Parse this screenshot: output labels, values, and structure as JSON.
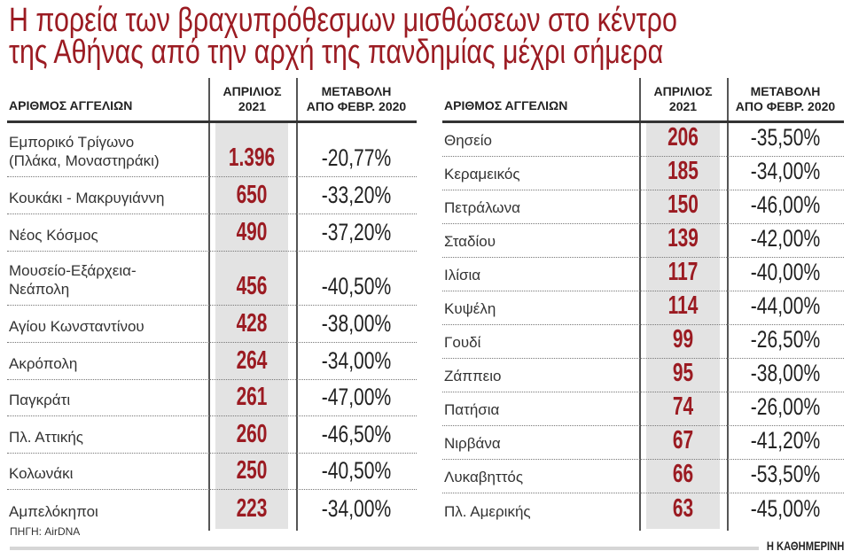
{
  "title": {
    "line1": "Η πορεία των βραχυπρόθεσμων μισθώσεων στο κέντρο",
    "line2": "της Αθήνας από την αρχή της πανδημίας μέχρι σήμερα"
  },
  "headers": {
    "name": "ΑΡΙΘΜΟΣ ΑΓΓΕΛΙΩΝ",
    "value_line1": "ΑΠΡΙΛΙΟΣ",
    "value_line2": "2021",
    "change_line1": "ΜΕΤΑΒΟΛΗ",
    "change_line2": "ΑΠΟ ΦΕΒΡ. 2020"
  },
  "chart_data": {
    "type": "table",
    "title": "Η πορεία των βραχυπρόθεσμων μισθώσεων στο κέντρο της Αθήνας από την αρχή της πανδημίας μέχρι σήμερα",
    "columns": [
      "ΑΡΙΘΜΟΣ ΑΓΓΕΛΙΩΝ",
      "ΑΠΡΙΛΙΟΣ 2021",
      "ΜΕΤΑΒΟΛΗ ΑΠΟ ΦΕΒΡ. 2020"
    ],
    "left": [
      {
        "name": [
          "Εμπορικό Τρίγωνο",
          "(Πλάκα, Μοναστηράκι)"
        ],
        "value": "1.396",
        "change": "-20,77%"
      },
      {
        "name": [
          "Κουκάκι - Μακρυγιάννη"
        ],
        "value": "650",
        "change": "-33,20%"
      },
      {
        "name": [
          "Νέος Κόσμος"
        ],
        "value": "490",
        "change": "-37,20%"
      },
      {
        "name": [
          "Μουσείο-Εξάρχεια-",
          "Νεάπολη"
        ],
        "value": "456",
        "change": "-40,50%"
      },
      {
        "name": [
          "Αγίου Κωνσταντίνου"
        ],
        "value": "428",
        "change": "-38,00%"
      },
      {
        "name": [
          "Ακρόπολη"
        ],
        "value": "264",
        "change": "-34,00%"
      },
      {
        "name": [
          "Παγκράτι"
        ],
        "value": "261",
        "change": "-47,00%"
      },
      {
        "name": [
          "Πλ. Αττικής"
        ],
        "value": "260",
        "change": "-46,50%"
      },
      {
        "name": [
          "Κολωνάκι"
        ],
        "value": "250",
        "change": "-40,50%"
      },
      {
        "name": [
          "Αμπελόκηποι"
        ],
        "value": "223",
        "change": "-34,00%"
      }
    ],
    "right": [
      {
        "name": [
          "Θησείο"
        ],
        "value": "206",
        "change": "-35,50%"
      },
      {
        "name": [
          "Κεραμεικός"
        ],
        "value": "185",
        "change": "-34,00%"
      },
      {
        "name": [
          "Πετράλωνα"
        ],
        "value": "150",
        "change": "-46,00%"
      },
      {
        "name": [
          "Σταδίου"
        ],
        "value": "139",
        "change": "-42,00%"
      },
      {
        "name": [
          "Ιλίσια"
        ],
        "value": "117",
        "change": "-40,00%"
      },
      {
        "name": [
          "Κυψέλη"
        ],
        "value": "114",
        "change": "-44,00%"
      },
      {
        "name": [
          "Γουδί"
        ],
        "value": "99",
        "change": "-26,50%"
      },
      {
        "name": [
          "Ζάππειο"
        ],
        "value": "95",
        "change": "-38,00%"
      },
      {
        "name": [
          "Πατήσια"
        ],
        "value": "74",
        "change": "-26,00%"
      },
      {
        "name": [
          "Νιρβάνα"
        ],
        "value": "67",
        "change": "-41,20%"
      },
      {
        "name": [
          "Λυκαβηττός"
        ],
        "value": "66",
        "change": "-53,50%"
      },
      {
        "name": [
          "Πλ. Αμερικής"
        ],
        "value": "63",
        "change": "-45,00%"
      }
    ]
  },
  "colors": {
    "accent": "#9b1b22",
    "value_column_bg": "#e3e3e3"
  },
  "footer": {
    "source": "ΠΗΓΗ: AirDNA",
    "brand": "Η ΚΑΘΗΜΕΡΙΝΗ"
  }
}
